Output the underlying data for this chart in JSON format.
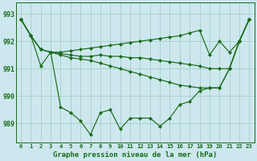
{
  "background_color": "#cce8ee",
  "grid_color": "#aacccc",
  "line_color": "#1a6b1a",
  "marker_color": "#1a6b1a",
  "title": "Graphe pression niveau de la mer (hPa)",
  "hours": [
    0,
    1,
    2,
    3,
    4,
    5,
    6,
    7,
    8,
    9,
    10,
    11,
    12,
    13,
    14,
    15,
    16,
    17,
    18,
    19,
    20,
    21,
    22,
    23
  ],
  "yticks": [
    989,
    990,
    991,
    992,
    993
  ],
  "ylim": [
    988.3,
    993.4
  ],
  "xlim": [
    -0.5,
    23.5
  ],
  "series": [
    [
      992.8,
      992.2,
      991.7,
      991.6,
      991.6,
      991.65,
      991.7,
      991.75,
      991.8,
      991.85,
      991.9,
      991.95,
      992.0,
      992.05,
      992.1,
      992.15,
      992.2,
      992.3,
      992.4,
      991.5,
      992.0,
      991.6,
      992.0,
      992.8
    ],
    [
      992.8,
      992.2,
      991.7,
      991.6,
      991.55,
      991.5,
      991.45,
      991.45,
      991.5,
      991.45,
      991.45,
      991.4,
      991.4,
      991.35,
      991.3,
      991.25,
      991.2,
      991.15,
      991.1,
      991.0,
      991.0,
      991.0,
      992.0,
      992.8
    ],
    [
      992.8,
      992.2,
      991.7,
      991.6,
      991.5,
      991.4,
      991.35,
      991.3,
      991.2,
      991.1,
      991.0,
      990.9,
      990.8,
      990.7,
      990.6,
      990.5,
      990.4,
      990.35,
      990.3,
      990.3,
      990.3,
      991.0,
      992.0,
      992.8
    ],
    [
      992.8,
      992.2,
      991.1,
      991.6,
      989.6,
      989.4,
      989.1,
      988.6,
      989.4,
      989.5,
      988.8,
      989.2,
      989.2,
      989.2,
      988.9,
      989.2,
      989.7,
      989.8,
      990.2,
      990.3,
      990.3,
      991.0,
      992.0,
      992.8
    ]
  ]
}
